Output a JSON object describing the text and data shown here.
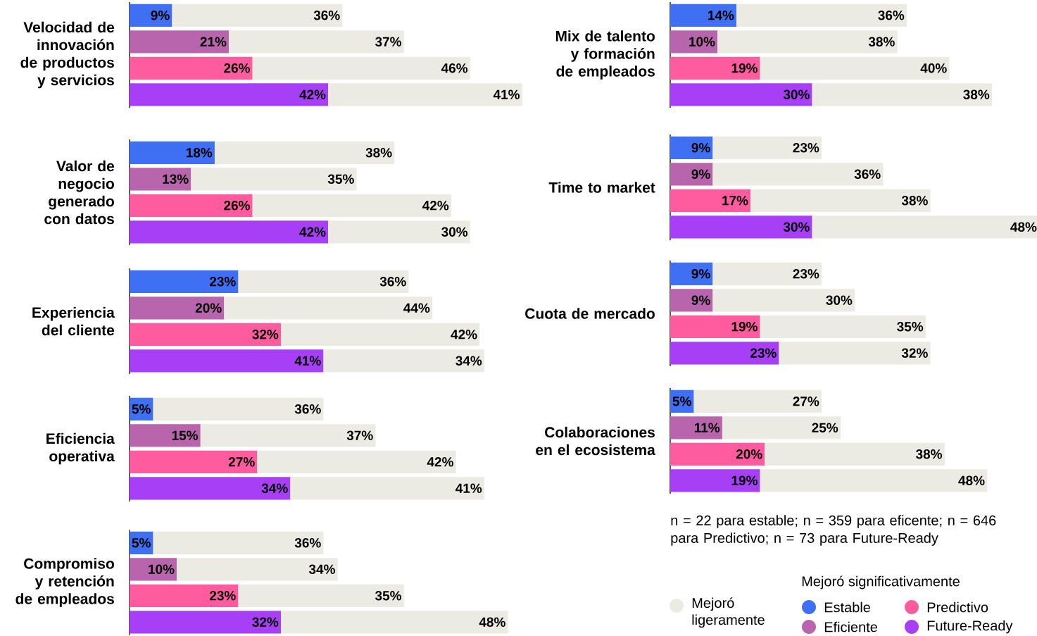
{
  "chart_data": [
    {
      "type": "bar",
      "orientation": "horizontal",
      "stacked": true,
      "title": "Velocidad de innovación de productos y servicios",
      "categories": [
        null,
        null,
        null,
        null
      ],
      "series": [
        {
          "colors": [
            "#3f6ff2",
            "#b865ad",
            "#ff5ca0",
            "#a63ff5"
          ],
          "values": [
            9,
            21,
            26,
            42
          ],
          "value_labels": [
            "9%",
            "21%",
            "26%",
            "42%"
          ]
        },
        {
          "color": "#ebebe3",
          "values": [
            36,
            37,
            46,
            41
          ],
          "value_labels": [
            "36%",
            "37%",
            "46%",
            "41%"
          ]
        }
      ]
    },
    {
      "type": "bar",
      "orientation": "horizontal",
      "stacked": true,
      "title": "Valor de negocio generado con datos",
      "categories": [
        null,
        null,
        null,
        null
      ],
      "series": [
        {
          "colors": [
            "#3f6ff2",
            "#b865ad",
            "#ff5ca0",
            "#a63ff5"
          ],
          "values": [
            18,
            13,
            26,
            42
          ],
          "value_labels": [
            "18%",
            "13%",
            "26%",
            "42%"
          ]
        },
        {
          "color": "#ebebe3",
          "values": [
            38,
            35,
            42,
            30
          ],
          "value_labels": [
            "38%",
            "35%",
            "42%",
            "30%"
          ]
        }
      ]
    },
    {
      "type": "bar",
      "orientation": "horizontal",
      "stacked": true,
      "title": "Experiencia del cliente",
      "categories": [
        null,
        null,
        null,
        null
      ],
      "series": [
        {
          "colors": [
            "#3f6ff2",
            "#b865ad",
            "#ff5ca0",
            "#a63ff5"
          ],
          "values": [
            23,
            20,
            32,
            41
          ],
          "value_labels": [
            "23%",
            "20%",
            "32%",
            "41%"
          ]
        },
        {
          "color": "#ebebe3",
          "values": [
            36,
            44,
            42,
            34
          ],
          "value_labels": [
            "36%",
            "44%",
            "42%",
            "34%"
          ]
        }
      ]
    },
    {
      "type": "bar",
      "orientation": "horizontal",
      "stacked": true,
      "title": "Eficiencia operativa",
      "categories": [
        null,
        null,
        null,
        null
      ],
      "series": [
        {
          "colors": [
            "#3f6ff2",
            "#b865ad",
            "#ff5ca0",
            "#a63ff5"
          ],
          "values": [
            5,
            15,
            27,
            34
          ],
          "value_labels": [
            "5%",
            "15%",
            "27%",
            "34%"
          ]
        },
        {
          "color": "#ebebe3",
          "values": [
            36,
            37,
            42,
            41
          ],
          "value_labels": [
            "36%",
            "37%",
            "42%",
            "41%"
          ]
        }
      ]
    },
    {
      "type": "bar",
      "orientation": "horizontal",
      "stacked": true,
      "title": "Compromiso y retención de empleados",
      "categories": [
        null,
        null,
        null,
        null
      ],
      "series": [
        {
          "colors": [
            "#3f6ff2",
            "#b865ad",
            "#ff5ca0",
            "#a63ff5"
          ],
          "values": [
            5,
            10,
            23,
            32
          ],
          "value_labels": [
            "5%",
            "10%",
            "23%",
            "32%"
          ]
        },
        {
          "color": "#ebebe3",
          "values": [
            36,
            34,
            35,
            48
          ],
          "value_labels": [
            "36%",
            "34%",
            "35%",
            "48%"
          ]
        }
      ]
    },
    {
      "type": "bar",
      "orientation": "horizontal",
      "stacked": true,
      "title": "Mix de talento y formación de empleados",
      "categories": [
        null,
        null,
        null,
        null
      ],
      "series": [
        {
          "colors": [
            "#3f6ff2",
            "#b865ad",
            "#ff5ca0",
            "#a63ff5"
          ],
          "values": [
            14,
            10,
            19,
            30
          ],
          "value_labels": [
            "14%",
            "10%",
            "19%",
            "30%"
          ]
        },
        {
          "color": "#ebebe3",
          "values": [
            36,
            38,
            40,
            38
          ],
          "value_labels": [
            "36%",
            "38%",
            "40%",
            "38%"
          ]
        }
      ]
    },
    {
      "type": "bar",
      "orientation": "horizontal",
      "stacked": true,
      "title": "Time to market",
      "categories": [
        null,
        null,
        null,
        null
      ],
      "series": [
        {
          "colors": [
            "#3f6ff2",
            "#b865ad",
            "#ff5ca0",
            "#a63ff5"
          ],
          "values": [
            9,
            9,
            17,
            30
          ],
          "value_labels": [
            "9%",
            "9%",
            "17%",
            "30%"
          ]
        },
        {
          "color": "#ebebe3",
          "values": [
            23,
            36,
            38,
            48
          ],
          "value_labels": [
            "23%",
            "36%",
            "38%",
            "48%"
          ]
        }
      ]
    },
    {
      "type": "bar",
      "orientation": "horizontal",
      "stacked": true,
      "title": "Cuota de mercado",
      "categories": [
        null,
        null,
        null,
        null
      ],
      "series": [
        {
          "colors": [
            "#3f6ff2",
            "#b865ad",
            "#ff5ca0",
            "#a63ff5"
          ],
          "values": [
            9,
            9,
            19,
            23
          ],
          "value_labels": [
            "9%",
            "9%",
            "19%",
            "23%"
          ]
        },
        {
          "color": "#ebebe3",
          "values": [
            23,
            30,
            35,
            32
          ],
          "value_labels": [
            "23%",
            "30%",
            "35%",
            "32%"
          ]
        }
      ]
    },
    {
      "type": "bar",
      "orientation": "horizontal",
      "stacked": true,
      "title": "Colaboraciones en el ecosistema",
      "categories": [
        null,
        null,
        null,
        null
      ],
      "legend": "bottom",
      "annotations": [
        "n = 22 para estable; n = 359 para eficente; n = 646 para Predictivo; n = 73 para Future-Ready"
      ],
      "series": [
        {
          "colors": [
            "#3f6ff2",
            "#b865ad",
            "#ff5ca0",
            "#a63ff5"
          ],
          "values": [
            5,
            11,
            20,
            19
          ],
          "value_labels": [
            "5%",
            "11%",
            "20%",
            "19%"
          ]
        },
        {
          "name": "Mejoró ligeramente",
          "color": "#ebebe3",
          "values": [
            27,
            25,
            38,
            48
          ],
          "value_labels": [
            "27%",
            "25%",
            "38%",
            "48%"
          ]
        }
      ]
    },
    {
      "type": "other",
      "title": "Mejoró significativamente",
      "categories": [
        "Estable",
        "Eficiente",
        "Predictivo",
        "Future-Ready"
      ],
      "colors": [
        "#3f6ff2",
        "#b865ad",
        "#ff5ca0",
        "#a63ff5"
      ]
    }
  ]
}
